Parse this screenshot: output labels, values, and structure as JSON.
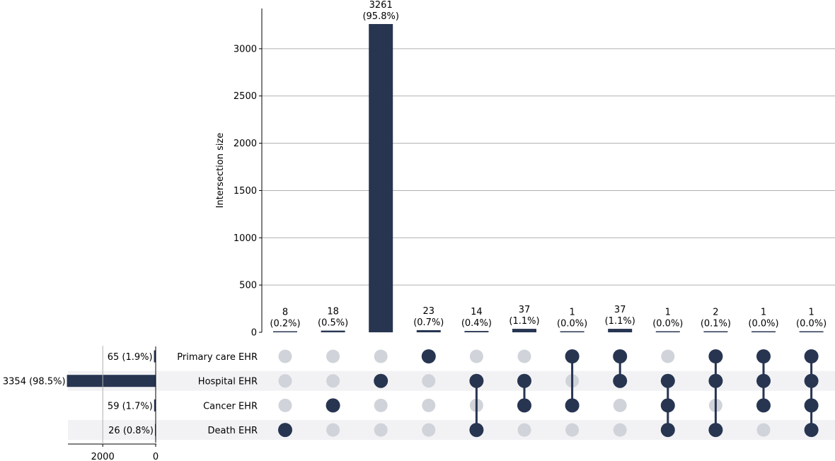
{
  "chart_data": {
    "type": "bar",
    "subtype": "upset",
    "ylabel": "Intersection size",
    "ylim": [
      0,
      3400
    ],
    "yticks": [
      0,
      500,
      1000,
      1500,
      2000,
      2500,
      3000
    ],
    "grid": true,
    "colors": {
      "bar": "#273551",
      "dot_on": "#273551",
      "dot_off": "#d0d3d9",
      "stripe": "#f2f2f5",
      "grid": "#b0b0b0"
    },
    "sets": [
      {
        "name": "Primary care EHR",
        "size": 65,
        "label": "65 (1.9%)"
      },
      {
        "name": "Hospital EHR",
        "size": 3354,
        "label": "3354 (98.5%)"
      },
      {
        "name": "Cancer EHR",
        "size": 59,
        "label": "59 (1.7%)"
      },
      {
        "name": "Death EHR",
        "size": 26,
        "label": "26 (0.8%)"
      }
    ],
    "set_size_ticks": [
      2000,
      0
    ],
    "intersections": [
      {
        "value": 8,
        "label_count": "8",
        "label_pct": "(0.2%)",
        "members": [
          3
        ]
      },
      {
        "value": 18,
        "label_count": "18",
        "label_pct": "(0.5%)",
        "members": [
          2
        ]
      },
      {
        "value": 3261,
        "label_count": "3261",
        "label_pct": "(95.8%)",
        "members": [
          1
        ]
      },
      {
        "value": 23,
        "label_count": "23",
        "label_pct": "(0.7%)",
        "members": [
          0
        ]
      },
      {
        "value": 14,
        "label_count": "14",
        "label_pct": "(0.4%)",
        "members": [
          1,
          3
        ]
      },
      {
        "value": 37,
        "label_count": "37",
        "label_pct": "(1.1%)",
        "members": [
          1,
          2
        ]
      },
      {
        "value": 1,
        "label_count": "1",
        "label_pct": "(0.0%)",
        "members": [
          0,
          2
        ]
      },
      {
        "value": 37,
        "label_count": "37",
        "label_pct": "(1.1%)",
        "members": [
          0,
          1
        ]
      },
      {
        "value": 1,
        "label_count": "1",
        "label_pct": "(0.0%)",
        "members": [
          1,
          2,
          3
        ]
      },
      {
        "value": 2,
        "label_count": "2",
        "label_pct": "(0.1%)",
        "members": [
          0,
          1,
          3
        ]
      },
      {
        "value": 1,
        "label_count": "1",
        "label_pct": "(0.0%)",
        "members": [
          0,
          1,
          2
        ]
      },
      {
        "value": 1,
        "label_count": "1",
        "label_pct": "(0.0%)",
        "members": [
          0,
          1,
          2,
          3
        ]
      }
    ]
  }
}
